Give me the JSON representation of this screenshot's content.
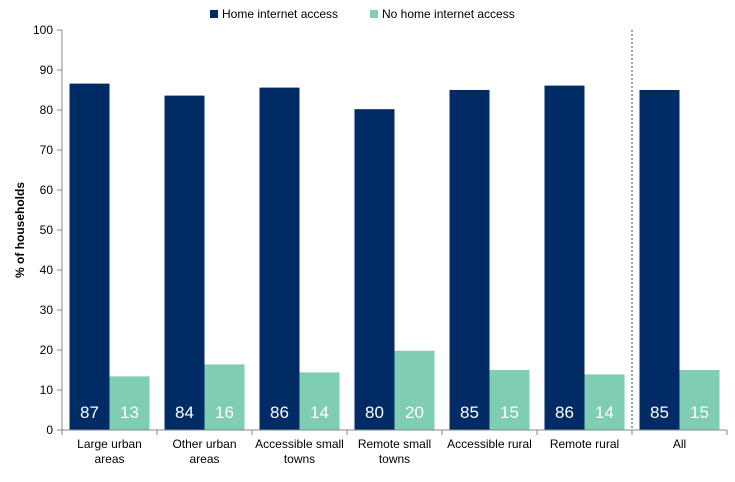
{
  "chart_data": {
    "type": "bar",
    "ylabel": "% of households",
    "ylim": [
      0,
      100
    ],
    "yticks": [
      0,
      10,
      20,
      30,
      40,
      50,
      60,
      70,
      80,
      90,
      100
    ],
    "grid": false,
    "legend_position": "top-center",
    "categories": [
      [
        "Large urban",
        "areas"
      ],
      [
        "Other urban",
        "areas"
      ],
      [
        "Accessible small",
        "towns"
      ],
      [
        "Remote small",
        "towns"
      ],
      [
        "Accessible rural"
      ],
      [
        "Remote rural"
      ],
      [
        "All"
      ]
    ],
    "series": [
      {
        "name": "Home internet access",
        "color": "#002b64",
        "values": [
          86.6,
          83.6,
          85.6,
          80.2,
          85.0,
          86.1,
          85.0
        ],
        "labels": [
          "87",
          "84",
          "86",
          "80",
          "85",
          "86",
          "85"
        ]
      },
      {
        "name": "No home internet access",
        "color": "#7fcdb2",
        "values": [
          13.4,
          16.4,
          14.4,
          19.8,
          15.0,
          13.9,
          15.0
        ],
        "labels": [
          "13",
          "16",
          "14",
          "20",
          "15",
          "14",
          "15"
        ]
      }
    ],
    "separator_before_category": 6
  }
}
